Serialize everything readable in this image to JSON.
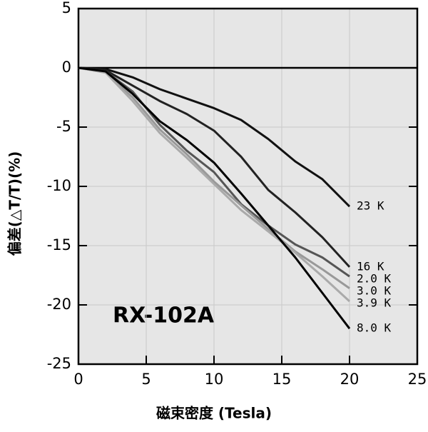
{
  "chart_data": {
    "type": "line",
    "x_label": "磁束密度 (Tesla)",
    "y_label": "偏差(△T/T)(%)",
    "annotation": "RX-102A",
    "xlim": [
      0,
      25
    ],
    "xticks": [
      0,
      5,
      10,
      15,
      20,
      25
    ],
    "ylim": [
      -25,
      5
    ],
    "yticks": [
      -25,
      -20,
      -15,
      -10,
      -5,
      0,
      5
    ],
    "grid": true,
    "x": [
      0,
      2,
      4,
      6,
      8,
      10,
      12,
      14,
      16,
      18,
      20
    ],
    "series": [
      {
        "name": "23 K",
        "color": "#111111",
        "values": [
          0,
          -0.1,
          -0.8,
          -1.8,
          -2.6,
          -3.4,
          -4.4,
          -6,
          -7.9,
          -9.4,
          -11.7
        ]
      },
      {
        "name": "16 K",
        "color": "#222222",
        "values": [
          0,
          -0.2,
          -1.5,
          -2.8,
          -3.9,
          -5.3,
          -7.5,
          -10.3,
          -12.2,
          -14.3,
          -16.8
        ]
      },
      {
        "name": "2.0 K",
        "color": "#555555",
        "values": [
          0,
          -0.3,
          -2,
          -4.8,
          -7,
          -8.8,
          -11.5,
          -13.3,
          -14.9,
          -16,
          -17.6
        ]
      },
      {
        "name": "3.0 K",
        "color": "#999999",
        "values": [
          0,
          -0.4,
          -2.5,
          -5.2,
          -7.3,
          -9.6,
          -11.6,
          -13.6,
          -15.5,
          -17,
          -18.6
        ]
      },
      {
        "name": "3.9 K",
        "color": "#aaaaaa",
        "values": [
          0,
          -0.4,
          -2.8,
          -5.5,
          -7.6,
          -9.8,
          -12,
          -13.8,
          -15.6,
          -17.6,
          -19.7
        ]
      },
      {
        "name": "8.0 K",
        "color": "#000000",
        "values": [
          0,
          -0.3,
          -2.2,
          -4.5,
          -6.1,
          -8,
          -10.6,
          -13.3,
          -16,
          -19,
          -22
        ]
      }
    ]
  }
}
